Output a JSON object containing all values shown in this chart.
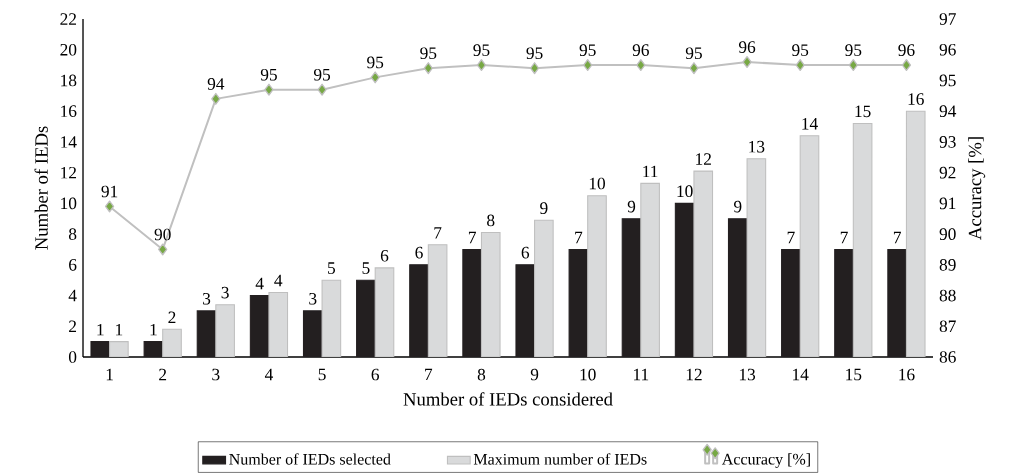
{
  "chart_data": {
    "type": "bar",
    "xlabel": "Number of IEDs considered",
    "ylabel": "Number of IEDs",
    "y2label": "Accuracy [%]",
    "categories": [
      "1",
      "2",
      "3",
      "4",
      "5",
      "6",
      "7",
      "8",
      "9",
      "10",
      "11",
      "12",
      "13",
      "14",
      "15",
      "16"
    ],
    "series": [
      {
        "name": "Number of IEDs selected",
        "color": "#231f20",
        "values": [
          1,
          1,
          3,
          4,
          3,
          5,
          6,
          7,
          6,
          7,
          9,
          10,
          9,
          7,
          7,
          7
        ],
        "value_labels": [
          "1",
          "1",
          "3",
          "4",
          "3",
          "5",
          "6",
          "7",
          "6",
          "7",
          "9",
          "10",
          "9",
          "7",
          "7",
          "7"
        ]
      },
      {
        "name": "Maximum number of IEDs",
        "color": "#d9dadb",
        "values": [
          1.0,
          1.8,
          3.4,
          4.2,
          5.0,
          5.8,
          7.3,
          8.1,
          8.9,
          10.5,
          11.3,
          12.1,
          12.9,
          14.4,
          15.2,
          16.0
        ],
        "value_labels": [
          "1",
          "2",
          "3",
          "4",
          "5",
          "6",
          "7",
          "8",
          "9",
          "10",
          "11",
          "12",
          "13",
          "14",
          "15",
          "16"
        ]
      },
      {
        "name": "Accuracy [%]",
        "type": "line",
        "axis": "y2",
        "color": "#c0c0c0",
        "marker": "diamond",
        "values": [
          90.9,
          89.5,
          94.4,
          94.7,
          94.7,
          95.1,
          95.4,
          95.5,
          95.4,
          95.5,
          95.5,
          95.4,
          95.6,
          95.5,
          95.5,
          95.5
        ],
        "value_labels": [
          "91",
          "90",
          "94",
          "95",
          "95",
          "95",
          "95",
          "95",
          "95",
          "95",
          "96",
          "95",
          "96",
          "95",
          "95",
          "96"
        ]
      }
    ],
    "ylim": [
      0,
      22
    ],
    "yticks": [
      0,
      2,
      4,
      6,
      8,
      10,
      12,
      14,
      16,
      18,
      20,
      22
    ],
    "y2lim": [
      86,
      97
    ],
    "y2ticks": [
      86,
      87,
      88,
      89,
      90,
      91,
      92,
      93,
      94,
      95,
      96,
      97
    ],
    "legend": "bottom"
  }
}
